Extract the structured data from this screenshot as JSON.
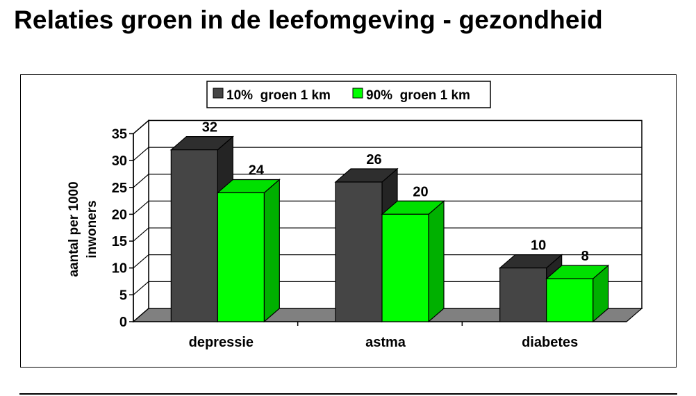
{
  "page": {
    "title": "Relaties groen in de leefomgeving - gezondheid"
  },
  "colors": {
    "series1_front": "#454545",
    "series1_top": "#2e2e2e",
    "series1_side": "#242424",
    "series2_front": "#00ff00",
    "series2_top": "#00e000",
    "series2_side": "#00b000",
    "floor": "#808080",
    "grid": "#000000"
  },
  "chart_data": {
    "type": "bar",
    "categories": [
      "depressie",
      "astma",
      "diabetes"
    ],
    "series": [
      {
        "name": "10%  groen 1 km",
        "values": [
          32,
          26,
          10
        ]
      },
      {
        "name": "90%  groen 1 km",
        "values": [
          24,
          20,
          8
        ]
      }
    ],
    "ylabel_line1": "aantal per 1000",
    "ylabel_line2": "inwoners",
    "ylim": [
      0,
      35
    ],
    "yticks": [
      0,
      5,
      10,
      15,
      20,
      25,
      30,
      35
    ],
    "legend_position": "top-center",
    "grid": true,
    "projection": "3d"
  }
}
